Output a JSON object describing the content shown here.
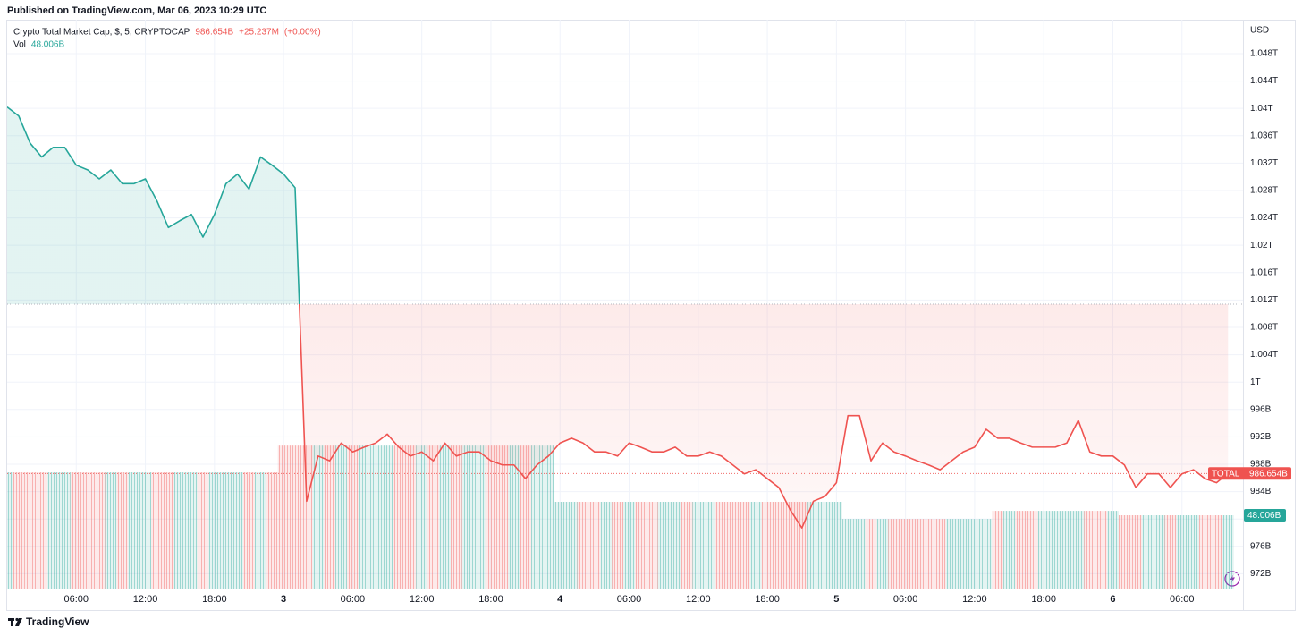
{
  "header": {
    "published": "Published on TradingView.com, Mar 06, 2023 10:29 UTC"
  },
  "chart_data": {
    "type": "baseline",
    "title": "Crypto Total Market Cap, $, 5, CRYPTOCAP",
    "symbol": "TOTAL",
    "currency": "USD",
    "change": "+25.237M",
    "change_pct": "(+0.00%)",
    "last": {
      "value": 986.654,
      "label": "986.654B"
    },
    "baseline": 1011.4,
    "categories": [
      null,
      null,
      null,
      null,
      null,
      null,
      "06:00",
      null,
      null,
      null,
      null,
      null,
      "12:00",
      null,
      null,
      null,
      null,
      null,
      "18:00",
      null,
      null,
      null,
      null,
      null,
      "3",
      null,
      null,
      null,
      null,
      null,
      "06:00",
      null,
      null,
      null,
      null,
      null,
      "12:00",
      null,
      null,
      null,
      null,
      null,
      "18:00",
      null,
      null,
      null,
      null,
      null,
      "4",
      null,
      null,
      null,
      null,
      null,
      "06:00",
      null,
      null,
      null,
      null,
      null,
      "12:00",
      null,
      null,
      null,
      null,
      null,
      "18:00",
      null,
      null,
      null,
      null,
      null,
      "5",
      null,
      null,
      null,
      null,
      null,
      "06:00",
      null,
      null,
      null,
      null,
      null,
      "12:00",
      null,
      null,
      null,
      null,
      null,
      "18:00",
      null,
      null,
      null,
      null,
      null,
      "6",
      null,
      null,
      null,
      null,
      null,
      "06:00",
      null,
      null,
      null,
      null
    ],
    "series": [
      {
        "color": "#26a69a",
        "down_color": "#ef5350",
        "values": [
          1040.2,
          1038.9,
          1034.9,
          1032.9,
          1034.3,
          1034.3,
          1031.7,
          1031,
          1029.7,
          1031,
          1029,
          1029,
          1029.7,
          1026.5,
          1022.6,
          1023.6,
          1024.5,
          1021.2,
          1024.5,
          1029,
          1030.4,
          1028.2,
          1032.9,
          1031.7,
          1030.4,
          1028.4,
          982.6,
          989.2,
          988.5,
          991.1,
          989.8,
          990.5,
          991.1,
          992.4,
          990.5,
          989.2,
          989.8,
          988.5,
          991.1,
          989.2,
          989.8,
          989.8,
          988.5,
          987.9,
          987.9,
          985.9,
          987.9,
          989.2,
          991.1,
          991.8,
          991.1,
          989.8,
          989.8,
          989.2,
          991.1,
          990.5,
          989.8,
          989.8,
          990.5,
          989.2,
          989.2,
          989.8,
          989.2,
          987.9,
          986.6,
          987.2,
          985.9,
          984.6,
          981.3,
          978.7,
          982.6,
          983.3,
          985.3,
          995.1,
          995.1,
          988.5,
          991.1,
          989.8,
          989.2,
          988.5,
          987.9,
          987.2,
          988.5,
          989.8,
          990.5,
          993.1,
          991.8,
          991.8,
          991.1,
          990.5,
          990.5,
          990.5,
          991.1,
          994.4,
          989.8,
          989.2,
          989.2,
          987.9,
          984.6,
          986.6,
          986.6,
          984.6,
          986.6,
          987.2,
          985.9,
          985.3,
          986.654
        ]
      }
    ],
    "volume": {
      "name": "Vol",
      "color": "#26a69a",
      "down_color": "#ef5350",
      "last": {
        "value": 48.006,
        "label": "48.006B"
      },
      "values": [
        76.1,
        76.1,
        76.1,
        76.1,
        76.1,
        76.1,
        76.1,
        76.1,
        76.1,
        76.1,
        76.1,
        76.1,
        76.1,
        76.1,
        76.1,
        76.1,
        76.1,
        76.1,
        76.1,
        76.1,
        76.1,
        76.1,
        76.1,
        76.1,
        93.6,
        93.6,
        93.6,
        93.6,
        93.6,
        93.6,
        93.6,
        93.6,
        93.6,
        93.6,
        93.6,
        93.6,
        93.6,
        93.6,
        93.6,
        93.6,
        93.6,
        93.6,
        93.6,
        93.6,
        93.6,
        93.6,
        93.6,
        93.6,
        56.8,
        56.8,
        56.8,
        56.8,
        56.8,
        56.8,
        56.8,
        56.8,
        56.8,
        56.8,
        56.8,
        56.8,
        56.8,
        56.8,
        56.8,
        56.8,
        56.8,
        56.8,
        56.8,
        56.8,
        56.8,
        56.8,
        56.8,
        56.8,
        56.8,
        45.6,
        45.6,
        45.6,
        45.6,
        45.6,
        45.6,
        45.6,
        45.6,
        45.6,
        45.6,
        45.6,
        45.6,
        45.6,
        50.9,
        50.9,
        50.9,
        50.9,
        50.9,
        50.9,
        50.9,
        50.9,
        50.9,
        50.9,
        50.9,
        48.006,
        48.006,
        48.006,
        48.006,
        48.006,
        48.006,
        48.006,
        48.006,
        48.006,
        48.006
      ]
    },
    "ylim": [
      969.83,
      1052.18
    ],
    "y2lim": [
      0,
      368.9
    ],
    "yticks": [
      {
        "value": 972,
        "label": "972B"
      },
      {
        "value": 976,
        "label": "976B"
      },
      {
        "value": 980,
        "label": "980B"
      },
      {
        "value": 984,
        "label": "984B"
      },
      {
        "value": 988,
        "label": "988B"
      },
      {
        "value": 992,
        "label": "992B"
      },
      {
        "value": 996,
        "label": "996B"
      },
      {
        "value": 1000,
        "label": "1T"
      },
      {
        "value": 1004,
        "label": "1.004T"
      },
      {
        "value": 1008,
        "label": "1.008T"
      },
      {
        "value": 1012,
        "label": "1.012T"
      },
      {
        "value": 1016,
        "label": "1.016T"
      },
      {
        "value": 1020,
        "label": "1.02T"
      },
      {
        "value": 1024,
        "label": "1.024T"
      },
      {
        "value": 1028,
        "label": "1.028T"
      },
      {
        "value": 1032,
        "label": "1.032T"
      },
      {
        "value": 1036,
        "label": "1.036T"
      },
      {
        "value": 1040,
        "label": "1.04T"
      },
      {
        "value": 1044,
        "label": "1.044T"
      },
      {
        "value": 1048,
        "label": "1.048T"
      }
    ],
    "grid": true
  },
  "footer": {
    "brand": "TradingView"
  }
}
